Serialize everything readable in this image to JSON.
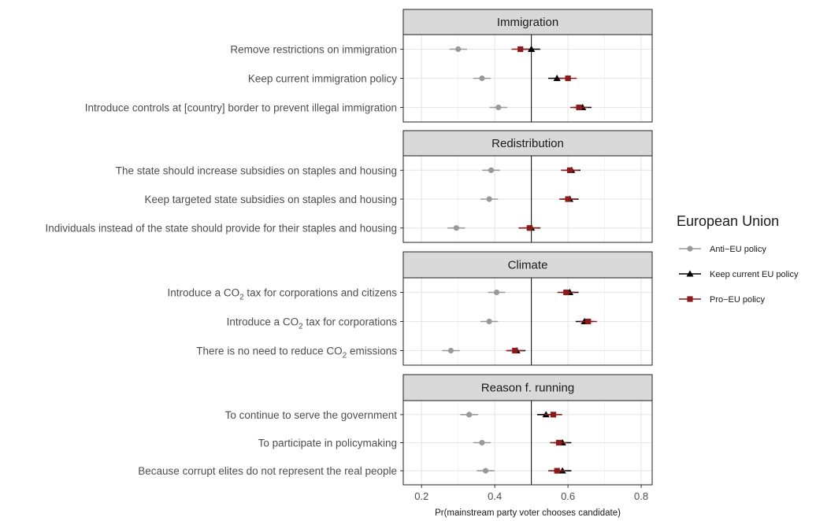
{
  "chart_data": {
    "type": "dot",
    "xlabel": "Pr(mainstream party voter chooses candidate)",
    "xlim": [
      0.15,
      0.83
    ],
    "xticks": [
      0.2,
      0.4,
      0.6,
      0.8
    ],
    "xtick_labels": [
      "0.2",
      "0.4",
      "0.6",
      "0.8"
    ],
    "reference_line": 0.5,
    "grid": true,
    "legend": {
      "title": "European Union",
      "position": "right",
      "entries": [
        {
          "name": "Anti−EU policy",
          "color": "#999999",
          "shape": "circle"
        },
        {
          "name": "Keep current EU policy",
          "color": "#000000",
          "shape": "triangle"
        },
        {
          "name": "Pro−EU policy",
          "color": "#8b1a1a",
          "shape": "square"
        }
      ]
    },
    "panels": [
      {
        "title": "Immigration",
        "categories": [
          {
            "label": "Remove restrictions on immigration",
            "pre": "",
            "sub": "",
            "post": "",
            "anti": {
              "est": 0.3,
              "lo": 0.276,
              "hi": 0.324
            },
            "keep": {
              "est": 0.5,
              "lo": 0.476,
              "hi": 0.524
            },
            "pro": {
              "est": 0.47,
              "lo": 0.446,
              "hi": 0.494
            }
          },
          {
            "label": "Keep current immigration policy",
            "pre": "",
            "sub": "",
            "post": "",
            "anti": {
              "est": 0.365,
              "lo": 0.341,
              "hi": 0.389
            },
            "keep": {
              "est": 0.57,
              "lo": 0.546,
              "hi": 0.594
            },
            "pro": {
              "est": 0.6,
              "lo": 0.576,
              "hi": 0.624
            }
          },
          {
            "label": "Introduce controls at [country] border to prevent illegal immigration",
            "pre": "",
            "sub": "",
            "post": "",
            "anti": {
              "est": 0.41,
              "lo": 0.386,
              "hi": 0.434
            },
            "keep": {
              "est": 0.64,
              "lo": 0.616,
              "hi": 0.664
            },
            "pro": {
              "est": 0.63,
              "lo": 0.606,
              "hi": 0.654
            }
          }
        ]
      },
      {
        "title": "Redistribution",
        "categories": [
          {
            "label": "The state should increase subsidies on staples and housing",
            "pre": "",
            "sub": "",
            "post": "",
            "anti": {
              "est": 0.39,
              "lo": 0.366,
              "hi": 0.414
            },
            "keep": {
              "est": 0.61,
              "lo": 0.586,
              "hi": 0.634
            },
            "pro": {
              "est": 0.605,
              "lo": 0.581,
              "hi": 0.629
            }
          },
          {
            "label": "Keep targeted state subsidies on staples and housing",
            "pre": "",
            "sub": "",
            "post": "",
            "anti": {
              "est": 0.385,
              "lo": 0.361,
              "hi": 0.409
            },
            "keep": {
              "est": 0.605,
              "lo": 0.581,
              "hi": 0.629
            },
            "pro": {
              "est": 0.6,
              "lo": 0.576,
              "hi": 0.624
            }
          },
          {
            "label": "Individuals instead of the state should provide for their staples and housing",
            "pre": "",
            "sub": "",
            "post": "",
            "anti": {
              "est": 0.295,
              "lo": 0.271,
              "hi": 0.319
            },
            "keep": {
              "est": 0.5,
              "lo": 0.476,
              "hi": 0.524
            },
            "pro": {
              "est": 0.495,
              "lo": 0.465,
              "hi": 0.525
            }
          }
        ]
      },
      {
        "title": "Climate",
        "categories": [
          {
            "label": "Introduce a CO2 tax for corporations and citizens",
            "pre": "Introduce a CO",
            "sub": "2",
            "post": " tax for corporations and citizens",
            "anti": {
              "est": 0.405,
              "lo": 0.381,
              "hi": 0.429
            },
            "keep": {
              "est": 0.605,
              "lo": 0.581,
              "hi": 0.629
            },
            "pro": {
              "est": 0.595,
              "lo": 0.571,
              "hi": 0.619
            }
          },
          {
            "label": "Introduce a CO2 tax for corporations",
            "pre": "Introduce a CO",
            "sub": "2",
            "post": " tax for corporations",
            "anti": {
              "est": 0.385,
              "lo": 0.361,
              "hi": 0.409
            },
            "keep": {
              "est": 0.645,
              "lo": 0.621,
              "hi": 0.669
            },
            "pro": {
              "est": 0.655,
              "lo": 0.631,
              "hi": 0.679
            }
          },
          {
            "label": "There is no need to reduce CO2 emissions",
            "pre": "There is no need to reduce CO",
            "sub": "2",
            "post": " emissions",
            "anti": {
              "est": 0.28,
              "lo": 0.256,
              "hi": 0.304
            },
            "keep": {
              "est": 0.46,
              "lo": 0.436,
              "hi": 0.484
            },
            "pro": {
              "est": 0.455,
              "lo": 0.431,
              "hi": 0.479
            }
          }
        ]
      },
      {
        "title": "Reason f. running",
        "categories": [
          {
            "label": "To continue to serve the government",
            "pre": "",
            "sub": "",
            "post": "",
            "anti": {
              "est": 0.33,
              "lo": 0.306,
              "hi": 0.354
            },
            "keep": {
              "est": 0.54,
              "lo": 0.516,
              "hi": 0.564
            },
            "pro": {
              "est": 0.56,
              "lo": 0.536,
              "hi": 0.584
            }
          },
          {
            "label": "To participate in policymaking",
            "pre": "",
            "sub": "",
            "post": "",
            "anti": {
              "est": 0.365,
              "lo": 0.341,
              "hi": 0.389
            },
            "keep": {
              "est": 0.585,
              "lo": 0.561,
              "hi": 0.609
            },
            "pro": {
              "est": 0.575,
              "lo": 0.551,
              "hi": 0.599
            }
          },
          {
            "label": "Because corrupt elites do not represent the real people",
            "pre": "",
            "sub": "",
            "post": "",
            "anti": {
              "est": 0.375,
              "lo": 0.351,
              "hi": 0.399
            },
            "keep": {
              "est": 0.585,
              "lo": 0.561,
              "hi": 0.609
            },
            "pro": {
              "est": 0.57,
              "lo": 0.546,
              "hi": 0.594
            }
          }
        ]
      }
    ]
  }
}
